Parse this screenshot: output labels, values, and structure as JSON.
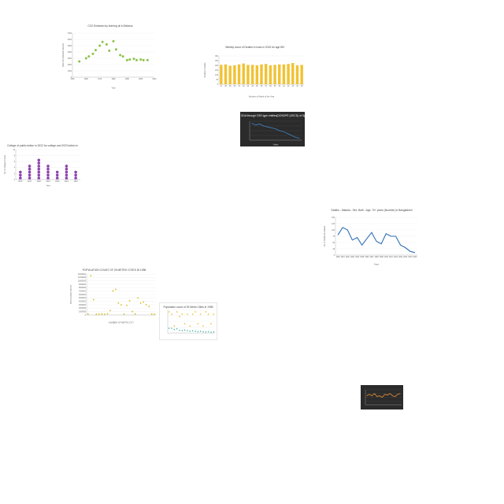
{
  "chart_data": [
    {
      "id": "c1",
      "type": "scatter",
      "title": "CO2 Emission by burning oil in Belarus",
      "xlabel": "Year",
      "ylabel": "Total CO2 Emission (tonnes)",
      "x": [
        1955,
        1960,
        1962,
        1965,
        1967,
        1970,
        1972,
        1975,
        1977,
        1980,
        1982,
        1985,
        1987,
        1990,
        1992,
        1995,
        1997,
        2000,
        2002,
        2005
      ],
      "values": [
        2500,
        3000,
        3300,
        3700,
        4300,
        5000,
        5600,
        5200,
        4200,
        5700,
        4400,
        3500,
        3300,
        2700,
        2800,
        2900,
        2700,
        2800,
        2700,
        2700
      ],
      "xlim": [
        1950,
        2010
      ],
      "ylim": [
        0,
        7000
      ],
      "xticks": [
        "1950",
        "1960",
        "1970",
        "1980",
        "1990",
        "2000",
        "2010"
      ],
      "yticks": [
        "0",
        "1000",
        "2000",
        "3000",
        "4000",
        "5000",
        "6000",
        "7000"
      ],
      "color": "#8bc34a"
    },
    {
      "id": "c2",
      "type": "bar",
      "title": "Weekly count of Deaths in Iowa in 2015 for age 85+",
      "xlabel": "Number of Week of the Year",
      "ylabel": "Number of deaths",
      "categories": [
        "27",
        "28",
        "29",
        "30",
        "31",
        "32",
        "33",
        "34",
        "35",
        "36",
        "37",
        "38",
        "39",
        "40",
        "41",
        "42",
        "43",
        "44",
        "45"
      ],
      "values": [
        205,
        210,
        195,
        200,
        210,
        220,
        205,
        205,
        200,
        210,
        215,
        200,
        205,
        210,
        210,
        215,
        225,
        200,
        205
      ],
      "ylim": [
        0,
        300
      ],
      "yticks": [
        "0",
        "50",
        "100",
        "150",
        "200",
        "250",
        "300"
      ],
      "color": "#f1c232"
    },
    {
      "id": "c3",
      "type": "line",
      "title": "Net ODA through CSR-type entities(DOSOPE (OECD) of Spain",
      "xlabel": "Years",
      "ylabel": "",
      "x": [
        2000,
        2001,
        2002,
        2003,
        2004,
        2005,
        2006,
        2007,
        2008,
        2009,
        2010,
        2011,
        2012
      ],
      "values": [
        9,
        8,
        8.6,
        7.5,
        7,
        6.5,
        6,
        5,
        4.5,
        3.5,
        2.5,
        1.5,
        1
      ],
      "ylim": [
        0,
        10
      ],
      "color": "#3d85c6"
    },
    {
      "id": "c4",
      "type": "scatter",
      "title": "College of public tuition in 2022 for college and 2023 tuition in",
      "xlabel": "Year",
      "ylabel": "No. of Colleges funded",
      "categories": [
        "2016",
        "2017",
        "2018",
        "2019",
        "2020",
        "2021",
        "2022"
      ],
      "values": [
        3,
        5,
        7,
        5,
        3,
        5,
        3
      ],
      "ylim": [
        0,
        10
      ],
      "yticks": [
        "0",
        "2",
        "4",
        "6",
        "8",
        "10"
      ],
      "color": "#8e44ad"
    },
    {
      "id": "c5",
      "type": "line",
      "title": "Deaths - Malaria - Sex: Both - Age: 70+ years (Number) in Bangladesh",
      "xlabel": "Years",
      "ylabel": "No. of Deaths by Malaria",
      "x": [
        1990,
        1991,
        1992,
        1993,
        1994,
        1995,
        1996,
        1997,
        1998,
        1999,
        2000,
        2001,
        2002,
        2003,
        2004,
        2005,
        2006
      ],
      "values": [
        80,
        110,
        100,
        60,
        70,
        40,
        65,
        90,
        55,
        45,
        85,
        75,
        75,
        40,
        30,
        15,
        10
      ],
      "ylim": [
        0,
        150
      ],
      "xticks": [
        "1990",
        "1991",
        "1992",
        "1993",
        "1994",
        "1995",
        "1996",
        "1997",
        "1998",
        "1999",
        "2000",
        "2001",
        "2002",
        "2003",
        "2004",
        "2005",
        "2006"
      ],
      "yticks": [
        "0",
        "25",
        "50",
        "75",
        "100",
        "125",
        "150"
      ],
      "color": "#2f6eb5"
    },
    {
      "id": "c6",
      "type": "scatter",
      "title": "POPULATION COUNT OF 25 METRO CITIES IN 1998",
      "xlabel": "NUMBER OF METRO CITY",
      "ylabel": "POPULATION COUNT",
      "x": [
        1,
        2,
        3,
        4,
        5,
        6,
        7,
        8,
        9,
        10,
        11,
        12,
        13,
        14,
        15,
        16,
        17,
        18,
        19,
        20,
        21,
        22,
        23,
        24,
        25
      ],
      "values": [
        300000,
        11500000,
        4500000,
        200000,
        250000,
        300000,
        200000,
        350000,
        1300000,
        7000000,
        7500000,
        3500000,
        3000000,
        250000,
        2800000,
        4200000,
        1000000,
        300000,
        5000000,
        3500000,
        3800000,
        3000000,
        2500000,
        300000,
        200000
      ],
      "ylim": [
        0,
        12000000
      ],
      "yticks": [
        "0",
        "1000000",
        "2000000",
        "3000000",
        "4000000",
        "5000000",
        "6000000",
        "7000000",
        "8000000",
        "9000000",
        "10000000",
        "11000000",
        "12000000"
      ],
      "color": "#d4c019"
    },
    {
      "id": "c7",
      "type": "scatter",
      "title": "Population count of 25 Metro Cities in 1998",
      "xlabel": "",
      "ylabel": "",
      "x": [
        1,
        2,
        3,
        4,
        5,
        6,
        7,
        8,
        9,
        10,
        11,
        12,
        13,
        14,
        15,
        16,
        17,
        18
      ],
      "values": [
        9,
        8,
        3,
        9,
        7,
        8,
        4,
        8,
        3,
        8,
        9,
        4,
        8,
        3,
        9,
        8,
        4,
        8
      ],
      "values2": [
        2,
        2,
        1.5,
        1.8,
        1.2,
        1,
        1.3,
        1,
        0.8,
        1,
        0.8,
        0.6,
        0.8,
        0.6,
        0.5,
        0.6,
        0.4,
        0.5
      ],
      "ylim": [
        0,
        10
      ],
      "color": "#f1c232",
      "color2": "#26a69a"
    },
    {
      "id": "c8",
      "type": "line",
      "title": "",
      "xlabel": "",
      "ylabel": "",
      "x": [
        1,
        2,
        3,
        4,
        5,
        6,
        7,
        8,
        9,
        10,
        11,
        12,
        13,
        14
      ],
      "values": [
        6,
        7,
        6,
        7.5,
        5.5,
        6,
        5,
        7,
        6.5,
        7.5,
        6,
        5.5,
        7,
        7.5
      ],
      "ylim": [
        0,
        10
      ],
      "color": "#e69138"
    }
  ]
}
